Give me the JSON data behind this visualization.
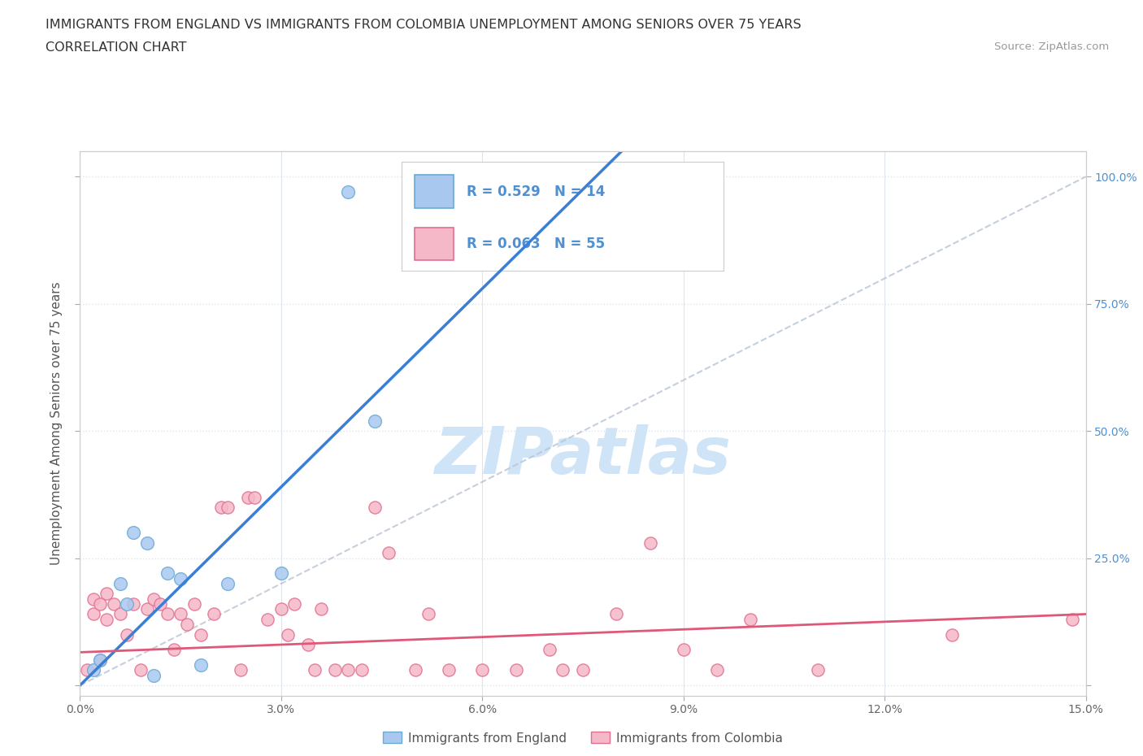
{
  "title_line1": "IMMIGRANTS FROM ENGLAND VS IMMIGRANTS FROM COLOMBIA UNEMPLOYMENT AMONG SENIORS OVER 75 YEARS",
  "title_line2": "CORRELATION CHART",
  "source_text": "Source: ZipAtlas.com",
  "ylabel": "Unemployment Among Seniors over 75 years",
  "legend_label1": "Immigrants from England",
  "legend_label2": "Immigrants from Colombia",
  "R1": 0.529,
  "N1": 14,
  "R2": 0.063,
  "N2": 55,
  "color_england": "#a8c8f0",
  "color_england_edge": "#6aaad4",
  "color_colombia": "#f5b8c8",
  "color_colombia_edge": "#e07090",
  "color_england_line": "#3a7fd5",
  "color_colombia_line": "#e05878",
  "color_ref_line": "#b8c4d4",
  "color_right_ticks": "#5090d0",
  "xlim": [
    0.0,
    0.15
  ],
  "ylim": [
    -0.02,
    1.05
  ],
  "xticks": [
    0.0,
    0.03,
    0.06,
    0.09,
    0.12,
    0.15
  ],
  "yticks": [
    0.0,
    0.25,
    0.5,
    0.75,
    1.0
  ],
  "xticklabels": [
    "0.0%",
    "3.0%",
    "6.0%",
    "9.0%",
    "12.0%",
    "15.0%"
  ],
  "yticklabels_right": [
    "",
    "25.0%",
    "50.0%",
    "75.0%",
    "100.0%"
  ],
  "england_x": [
    0.002,
    0.003,
    0.006,
    0.007,
    0.008,
    0.01,
    0.011,
    0.013,
    0.015,
    0.018,
    0.022,
    0.03,
    0.044,
    0.04
  ],
  "england_y": [
    0.03,
    0.05,
    0.2,
    0.16,
    0.3,
    0.28,
    0.02,
    0.22,
    0.21,
    0.04,
    0.2,
    0.22,
    0.52,
    0.97
  ],
  "colombia_x": [
    0.001,
    0.002,
    0.002,
    0.003,
    0.003,
    0.004,
    0.004,
    0.005,
    0.006,
    0.007,
    0.008,
    0.009,
    0.01,
    0.011,
    0.012,
    0.013,
    0.014,
    0.015,
    0.016,
    0.017,
    0.018,
    0.02,
    0.021,
    0.022,
    0.024,
    0.025,
    0.026,
    0.028,
    0.03,
    0.031,
    0.032,
    0.034,
    0.035,
    0.036,
    0.038,
    0.04,
    0.042,
    0.044,
    0.046,
    0.05,
    0.052,
    0.055,
    0.06,
    0.065,
    0.07,
    0.072,
    0.075,
    0.08,
    0.085,
    0.09,
    0.095,
    0.1,
    0.11,
    0.13,
    0.148
  ],
  "colombia_y": [
    0.03,
    0.14,
    0.17,
    0.16,
    0.05,
    0.13,
    0.18,
    0.16,
    0.14,
    0.1,
    0.16,
    0.03,
    0.15,
    0.17,
    0.16,
    0.14,
    0.07,
    0.14,
    0.12,
    0.16,
    0.1,
    0.14,
    0.35,
    0.35,
    0.03,
    0.37,
    0.37,
    0.13,
    0.15,
    0.1,
    0.16,
    0.08,
    0.03,
    0.15,
    0.03,
    0.03,
    0.03,
    0.35,
    0.26,
    0.03,
    0.14,
    0.03,
    0.03,
    0.03,
    0.07,
    0.03,
    0.03,
    0.14,
    0.28,
    0.07,
    0.03,
    0.13,
    0.03,
    0.1,
    0.13
  ],
  "background_color": "#ffffff",
  "grid_color": "#dde4f0",
  "watermark_text": "ZIPatlas",
  "watermark_color": "#d0e4f8",
  "title_fontsize": 11.5,
  "axis_label_fontsize": 11,
  "tick_fontsize": 10,
  "source_fontsize": 9.5
}
